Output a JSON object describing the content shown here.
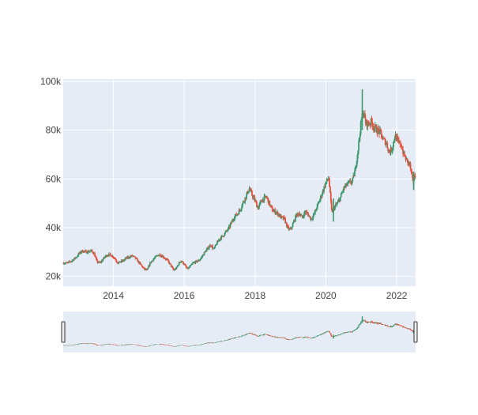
{
  "chart_data": {
    "type": "candlestick",
    "title": "",
    "xlabel": "",
    "ylabel": "",
    "x_range": [
      "2012-08-01",
      "2022-07-15"
    ],
    "ylim": [
      16000,
      101000
    ],
    "y_ticks": [
      20000,
      40000,
      60000,
      80000,
      100000
    ],
    "y_tick_labels": [
      "20k",
      "40k",
      "60k",
      "80k",
      "100k"
    ],
    "x_ticks": [
      "2014-01-01",
      "2016-01-01",
      "2018-01-01",
      "2020-01-01",
      "2022-01-01"
    ],
    "x_tick_labels": [
      "2014",
      "2016",
      "2018",
      "2020",
      "2022"
    ],
    "grid": true,
    "legend": "none",
    "rangeslider": true,
    "colors": {
      "increasing": "#3d9970",
      "decreasing": "#e8523f",
      "plot_bg": "#e5ecf6",
      "grid": "#ffffff",
      "text": "#444444"
    },
    "price_path": [
      [
        "2012-08-01",
        25500
      ],
      [
        "2012-09-15",
        25500
      ],
      [
        "2012-11-01",
        26500
      ],
      [
        "2012-12-15",
        28000
      ],
      [
        "2013-01-15",
        29500
      ],
      [
        "2013-02-15",
        30500
      ],
      [
        "2013-04-01",
        30000
      ],
      [
        "2013-05-15",
        30500
      ],
      [
        "2013-06-15",
        29500
      ],
      [
        "2013-07-15",
        26000
      ],
      [
        "2013-08-15",
        25500
      ],
      [
        "2013-09-15",
        27000
      ],
      [
        "2013-10-15",
        28500
      ],
      [
        "2013-11-15",
        29000
      ],
      [
        "2013-12-15",
        28500
      ],
      [
        "2014-01-15",
        27500
      ],
      [
        "2014-02-15",
        25500
      ],
      [
        "2014-03-15",
        26000
      ],
      [
        "2014-04-15",
        26500
      ],
      [
        "2014-05-15",
        27500
      ],
      [
        "2014-06-15",
        28000
      ],
      [
        "2014-07-15",
        28500
      ],
      [
        "2014-08-15",
        27500
      ],
      [
        "2014-09-15",
        26000
      ],
      [
        "2014-10-15",
        24500
      ],
      [
        "2014-11-15",
        23000
      ],
      [
        "2014-12-15",
        22500
      ],
      [
        "2015-01-15",
        25500
      ],
      [
        "2015-02-15",
        27000
      ],
      [
        "2015-03-15",
        28000
      ],
      [
        "2015-04-15",
        29000
      ],
      [
        "2015-05-15",
        28500
      ],
      [
        "2015-06-15",
        27500
      ],
      [
        "2015-07-15",
        26500
      ],
      [
        "2015-08-15",
        24500
      ],
      [
        "2015-09-15",
        22500
      ],
      [
        "2015-10-15",
        23500
      ],
      [
        "2015-11-01",
        25000
      ],
      [
        "2015-12-01",
        26500
      ],
      [
        "2016-01-01",
        25000
      ],
      [
        "2016-02-01",
        23000
      ],
      [
        "2016-03-01",
        24000
      ],
      [
        "2016-04-01",
        25500
      ],
      [
        "2016-05-01",
        26000
      ],
      [
        "2016-06-01",
        26500
      ],
      [
        "2016-07-01",
        28000
      ],
      [
        "2016-08-01",
        30000
      ],
      [
        "2016-09-01",
        31500
      ],
      [
        "2016-10-01",
        33000
      ],
      [
        "2016-11-01",
        31000
      ],
      [
        "2016-12-01",
        33500
      ],
      [
        "2017-01-01",
        35500
      ],
      [
        "2017-02-01",
        36500
      ],
      [
        "2017-03-01",
        38000
      ],
      [
        "2017-04-01",
        39500
      ],
      [
        "2017-05-01",
        42000
      ],
      [
        "2017-06-01",
        44500
      ],
      [
        "2017-07-01",
        45500
      ],
      [
        "2017-08-01",
        47500
      ],
      [
        "2017-09-01",
        50500
      ],
      [
        "2017-10-01",
        53000
      ],
      [
        "2017-11-01",
        56000
      ],
      [
        "2017-12-01",
        53500
      ],
      [
        "2018-01-01",
        51000
      ],
      [
        "2018-02-01",
        48000
      ],
      [
        "2018-03-01",
        50500
      ],
      [
        "2018-04-01",
        52000
      ],
      [
        "2018-05-01",
        52500
      ],
      [
        "2018-06-01",
        49500
      ],
      [
        "2018-07-01",
        47000
      ],
      [
        "2018-08-01",
        46500
      ],
      [
        "2018-09-01",
        45500
      ],
      [
        "2018-10-01",
        44000
      ],
      [
        "2018-11-01",
        43500
      ],
      [
        "2018-12-01",
        40000
      ],
      [
        "2019-01-01",
        39000
      ],
      [
        "2019-02-01",
        42000
      ],
      [
        "2019-03-01",
        45000
      ],
      [
        "2019-04-01",
        46000
      ],
      [
        "2019-05-01",
        44000
      ],
      [
        "2019-06-01",
        46500
      ],
      [
        "2019-07-01",
        45500
      ],
      [
        "2019-08-01",
        43500
      ],
      [
        "2019-09-01",
        45500
      ],
      [
        "2019-10-01",
        48500
      ],
      [
        "2019-11-01",
        51500
      ],
      [
        "2019-12-01",
        55000
      ],
      [
        "2020-01-01",
        58500
      ],
      [
        "2020-02-01",
        60500
      ],
      [
        "2020-03-01",
        46500
      ],
      [
        "2020-04-01",
        48500
      ],
      [
        "2020-05-01",
        50000
      ],
      [
        "2020-06-01",
        52500
      ],
      [
        "2020-07-01",
        56000
      ],
      [
        "2020-08-01",
        57500
      ],
      [
        "2020-09-01",
        58500
      ],
      [
        "2020-10-01",
        59000
      ],
      [
        "2020-11-01",
        64000
      ],
      [
        "2020-12-01",
        73000
      ],
      [
        "2021-01-01",
        84000
      ],
      [
        "2021-01-20",
        88000
      ],
      [
        "2021-02-15",
        83000
      ],
      [
        "2021-03-15",
        82500
      ],
      [
        "2021-04-15",
        83500
      ],
      [
        "2021-05-15",
        81000
      ],
      [
        "2021-06-15",
        80000
      ],
      [
        "2021-07-15",
        79000
      ],
      [
        "2021-08-15",
        76000
      ],
      [
        "2021-09-15",
        75000
      ],
      [
        "2021-10-15",
        71000
      ],
      [
        "2021-11-15",
        72500
      ],
      [
        "2021-12-15",
        78000
      ],
      [
        "2022-01-15",
        75000
      ],
      [
        "2022-02-15",
        74000
      ],
      [
        "2022-03-15",
        70000
      ],
      [
        "2022-04-15",
        67500
      ],
      [
        "2022-05-15",
        66000
      ],
      [
        "2022-06-15",
        59000
      ],
      [
        "2022-07-15",
        61500
      ]
    ],
    "spikes": [
      {
        "date": "2021-01-11",
        "high": 96800,
        "low": 80000
      },
      {
        "date": "2020-03-20",
        "high": 52000,
        "low": 42500
      },
      {
        "date": "2022-06-25",
        "high": 63000,
        "low": 55500
      }
    ],
    "candles_per_year": 52
  }
}
